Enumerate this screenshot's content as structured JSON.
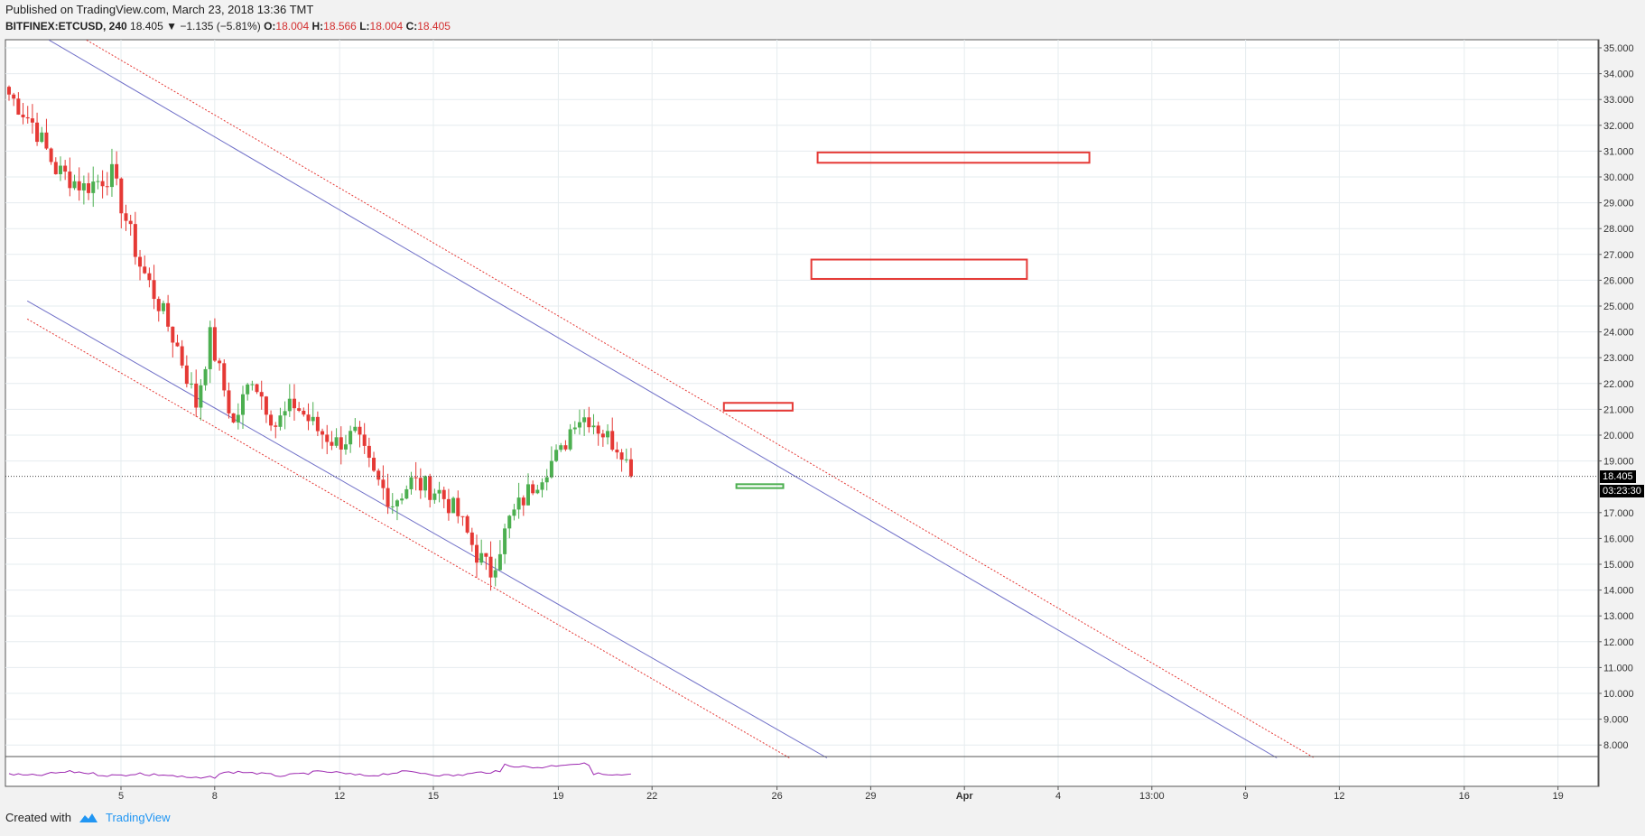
{
  "header": {
    "published": "Published on TradingView.com, March 23, 2018 13:36 TMT",
    "symbol": "BITFINEX:ETCUSD, 240",
    "last": "18.405",
    "change_arrow": "▼",
    "change": "−1.135 (−5.81%)",
    "o_label": "O:",
    "o_val": "18.004",
    "h_label": "H:",
    "h_val": "18.566",
    "l_label": "L:",
    "l_val": "18.004",
    "c_label": "C:",
    "c_val": "18.405"
  },
  "footer": {
    "created_with": "Created with",
    "brand": "TradingView"
  },
  "price_tags": {
    "last_price": "18.405",
    "countdown": "03:23:30"
  },
  "chart_data": {
    "type": "candlestick",
    "symbol": "BITFINEX:ETCUSD",
    "timeframe": "240",
    "ylim": [
      7.5,
      35.3
    ],
    "y_ticks": [
      "35.000",
      "34.000",
      "33.000",
      "32.000",
      "31.000",
      "30.000",
      "29.000",
      "28.000",
      "27.000",
      "26.000",
      "25.000",
      "24.000",
      "23.000",
      "22.000",
      "21.000",
      "20.000",
      "19.000",
      "17.000",
      "16.000",
      "15.000",
      "14.000",
      "13.000",
      "12.000",
      "11.000",
      "10.000",
      "9.000",
      "8.000"
    ],
    "x_ticks": [
      "5",
      "8",
      "12",
      "15",
      "19",
      "22",
      "26",
      "29",
      "Apr",
      "4",
      "13:00",
      "9",
      "12",
      "16",
      "19"
    ],
    "last_price": 18.405,
    "colors": {
      "up": "#4caf50",
      "down": "#e53935",
      "grid": "#e6ecef",
      "channel": "#7070c8",
      "channel_outer": "#e53935",
      "rsi": "#9c27b0"
    },
    "anchor_closes": [
      [
        0,
        33.2
      ],
      [
        5,
        32.1
      ],
      [
        10,
        30.3
      ],
      [
        16,
        29.6
      ],
      [
        22,
        30.1
      ],
      [
        28,
        26.6
      ],
      [
        32,
        25.1
      ],
      [
        36,
        23.4
      ],
      [
        40,
        21.2
      ],
      [
        43,
        23.8
      ],
      [
        48,
        20.4
      ],
      [
        52,
        22.3
      ],
      [
        57,
        20.4
      ],
      [
        61,
        21.2
      ],
      [
        66,
        20.2
      ],
      [
        70,
        19.7
      ],
      [
        74,
        20.0
      ],
      [
        78,
        18.4
      ],
      [
        82,
        17.4
      ],
      [
        86,
        18.2
      ],
      [
        92,
        17.8
      ],
      [
        96,
        16.9
      ],
      [
        100,
        15.4
      ],
      [
        103,
        14.7
      ],
      [
        107,
        16.7
      ],
      [
        111,
        17.8
      ],
      [
        115,
        18.8
      ],
      [
        118,
        19.3
      ],
      [
        121,
        20.7
      ],
      [
        124,
        20.7
      ],
      [
        128,
        19.9
      ],
      [
        131,
        19.5
      ],
      [
        133,
        18.405
      ]
    ],
    "resistance_zones": [
      {
        "x0_day": 25.3,
        "x1_day": 34.0,
        "y0": 30.55,
        "y1": 30.95,
        "color": "#e53935"
      },
      {
        "x0_day": 25.1,
        "x1_day": 32.0,
        "y0": 26.05,
        "y1": 26.8,
        "color": "#e53935"
      },
      {
        "x0_day": 22.3,
        "x1_day": 24.5,
        "y0": 20.95,
        "y1": 21.25,
        "color": "#e53935"
      }
    ],
    "support_zone": {
      "x0_day": 22.7,
      "x1_day": 24.2,
      "y0": 17.95,
      "y1": 18.1,
      "color": "#4caf50"
    },
    "channel_lines": [
      {
        "d0": 0.7,
        "p0": 35.3,
        "d1": 40.0,
        "p1": 7.5,
        "color": "#7070c8",
        "dash": false
      },
      {
        "d0": 1.9,
        "p0": 35.3,
        "d1": 41.2,
        "p1": 7.5,
        "color": "#e53935",
        "dash": true
      },
      {
        "d0": 0.0,
        "p0": 25.2,
        "d1": 25.6,
        "p1": 7.5,
        "color": "#7070c8",
        "dash": false
      },
      {
        "d0": 0.0,
        "p0": 24.5,
        "d1": 24.4,
        "p1": 7.5,
        "color": "#e53935",
        "dash": true
      }
    ]
  }
}
